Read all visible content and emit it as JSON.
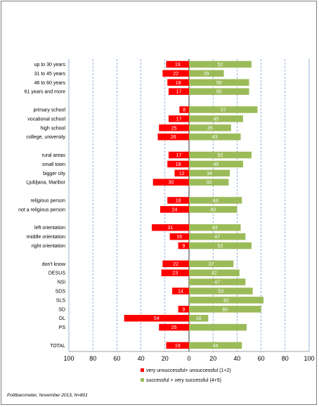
{
  "chart_data": {
    "type": "bar",
    "orientation": "horizontal-diverging",
    "categories": [
      "up to 30 years",
      "31 to 45 years",
      "46 to 60 years",
      "61 years and more",
      "",
      "primary school",
      "vocational school",
      "high school",
      "college, university",
      "",
      "rural areas",
      "small town",
      "bigger city",
      "Ljubljana, Maribor",
      "",
      "religious person",
      "not a religious person",
      "",
      "left orientation",
      "middle orientation",
      "right orientation",
      "",
      "don't know",
      "DESUS",
      "NSi",
      "SDS",
      "SLS",
      "SD",
      "DL",
      "PS",
      "",
      "TOTAL"
    ],
    "series": [
      {
        "name": "very unsuccessful+ unsuccessful (1+2)",
        "color": "#ff0000",
        "direction": "left",
        "values": [
          19,
          22,
          18,
          17,
          null,
          8,
          17,
          25,
          26,
          null,
          17,
          18,
          12,
          30,
          null,
          18,
          24,
          null,
          31,
          16,
          9,
          null,
          22,
          23,
          0,
          14,
          0,
          9,
          54,
          25,
          null,
          19
        ],
        "labels": [
          "19",
          "22",
          "18",
          "17",
          "",
          "8",
          "17",
          "25",
          "26",
          "",
          "17",
          "18",
          "12",
          "30",
          "",
          "18",
          "24",
          "",
          "31",
          "16",
          "9",
          "",
          "22",
          "23",
          "0",
          "14",
          "0",
          "9",
          "54",
          "25",
          "",
          "19"
        ]
      },
      {
        "name": "successful + very successful (4+5)",
        "color": "#9bbb59",
        "direction": "right",
        "values": [
          52,
          29,
          50,
          50,
          null,
          57,
          45,
          35,
          43,
          null,
          52,
          45,
          34,
          33,
          null,
          44,
          40,
          null,
          43,
          47,
          52,
          null,
          37,
          42,
          47,
          53,
          62,
          60,
          16,
          48,
          null,
          44
        ],
        "labels": [
          "52",
          "29",
          "50",
          "50",
          "",
          "57",
          "45",
          "35",
          "43",
          "",
          "52",
          "45",
          "34",
          "33",
          "",
          "44",
          "40",
          "",
          "43",
          "47",
          "52",
          "",
          "37",
          "42",
          "47",
          "53",
          "62",
          "60",
          "16",
          "",
          "",
          "44"
        ]
      }
    ],
    "axis": {
      "min": -100,
      "max": 100,
      "ticks": [
        -100,
        -80,
        -60,
        -40,
        -20,
        0,
        20,
        40,
        60,
        80,
        100
      ],
      "tick_labels": [
        "100",
        "80",
        "60",
        "40",
        "20",
        "0",
        "20",
        "40",
        "60",
        "80",
        "100"
      ]
    },
    "grid": "vertical-dashed",
    "legend_position": "bottom"
  },
  "source": "Politbarometer, November 2013, N=801"
}
